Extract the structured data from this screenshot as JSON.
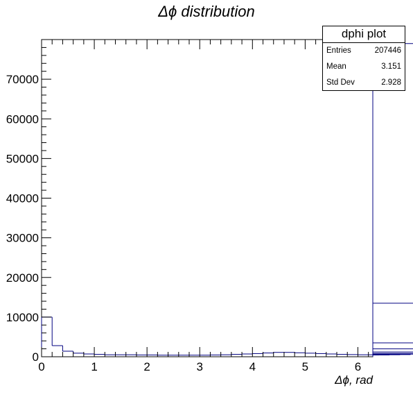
{
  "chart_data": {
    "type": "histogram",
    "title": "Δϕ distribution",
    "xlabel": "Δϕ, rad",
    "ylabel": "",
    "xlim": [
      0,
      6.2832
    ],
    "ylim": [
      0,
      80000
    ],
    "x_ticks": [
      "0",
      "1",
      "2",
      "3",
      "4",
      "5",
      "6"
    ],
    "y_ticks": [
      "0",
      "10000",
      "20000",
      "30000",
      "40000",
      "50000",
      "60000",
      "70000"
    ],
    "bin_width": 0.2,
    "values": [
      10000,
      2800,
      1400,
      900,
      700,
      600,
      500,
      500,
      500,
      450,
      450,
      400,
      400,
      400,
      400,
      400,
      450,
      500,
      600,
      700,
      800,
      950,
      1100,
      1100,
      1000,
      900,
      800,
      700,
      600,
      550,
      500,
      500,
      450,
      450,
      500,
      550,
      650,
      850,
      1200,
      2000,
      3500,
      13500,
      79000
    ],
    "series_color": "#000080"
  },
  "stats": {
    "name": "dphi plot",
    "rows": [
      {
        "key": "Entries",
        "value": "207446"
      },
      {
        "key": "Mean",
        "value": "3.151"
      },
      {
        "key": "Std Dev",
        "value": "2.928"
      }
    ]
  }
}
